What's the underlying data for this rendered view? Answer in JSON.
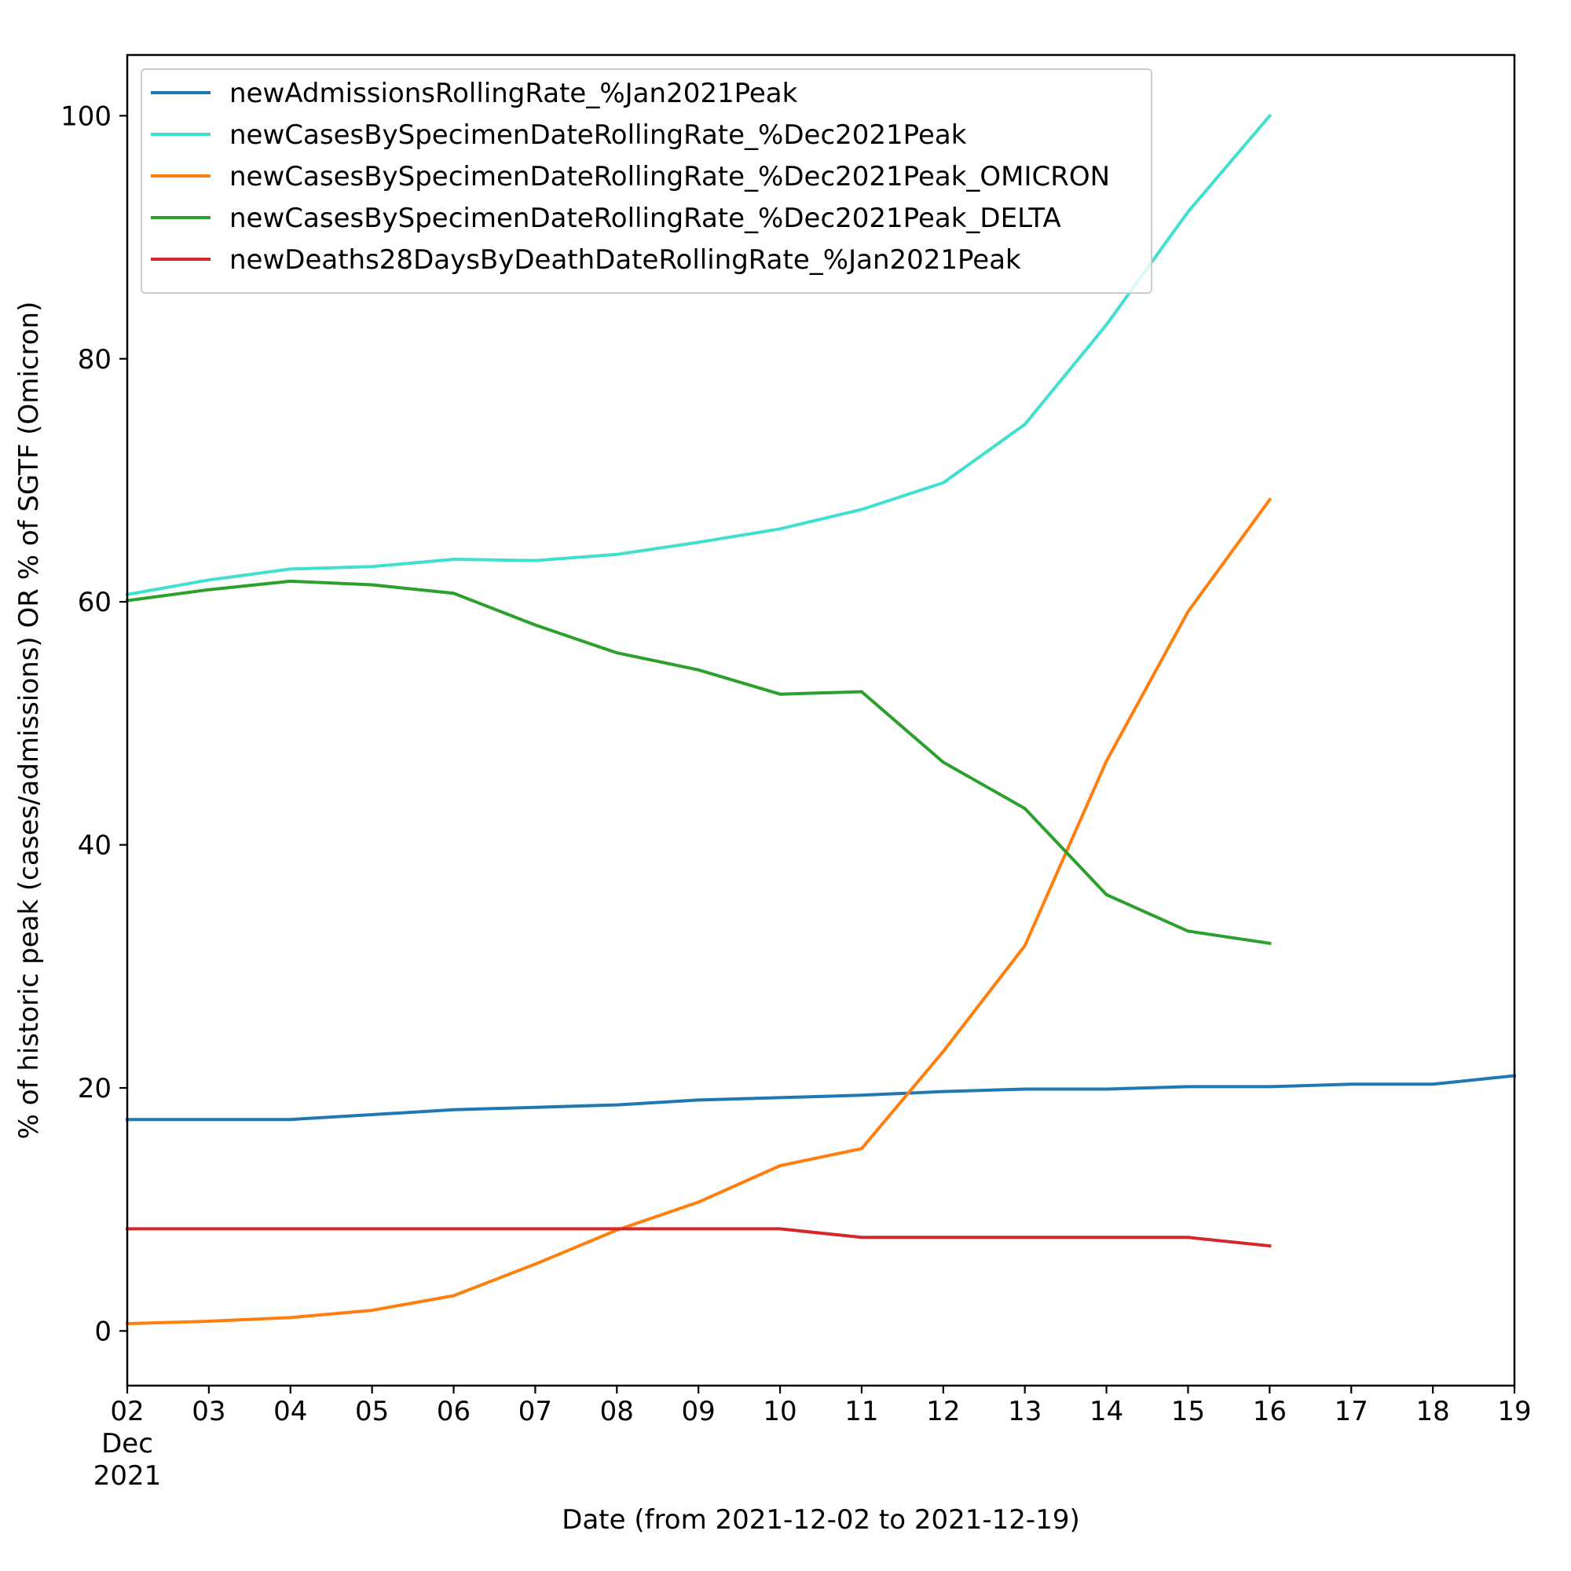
{
  "chart_data": {
    "type": "line",
    "xlabel": "Date (from 2021-12-02 to 2021-12-19)",
    "ylabel": "% of historic peak (cases/admissions) OR % of SGTF (Omicron)",
    "x": [
      "2021-12-02",
      "2021-12-03",
      "2021-12-04",
      "2021-12-05",
      "2021-12-06",
      "2021-12-07",
      "2021-12-08",
      "2021-12-09",
      "2021-12-10",
      "2021-12-11",
      "2021-12-12",
      "2021-12-13",
      "2021-12-14",
      "2021-12-15",
      "2021-12-16",
      "2021-12-17",
      "2021-12-18",
      "2021-12-19"
    ],
    "xlim": [
      "2021-12-02",
      "2021-12-19"
    ],
    "ylim": [
      -4.5,
      105
    ],
    "x_ticks": [
      {
        "lines": [
          "02",
          "Dec",
          "2021"
        ]
      },
      {
        "lines": [
          "03"
        ]
      },
      {
        "lines": [
          "04"
        ]
      },
      {
        "lines": [
          "05"
        ]
      },
      {
        "lines": [
          "06"
        ]
      },
      {
        "lines": [
          "07"
        ]
      },
      {
        "lines": [
          "08"
        ]
      },
      {
        "lines": [
          "09"
        ]
      },
      {
        "lines": [
          "10"
        ]
      },
      {
        "lines": [
          "11"
        ]
      },
      {
        "lines": [
          "12"
        ]
      },
      {
        "lines": [
          "13"
        ]
      },
      {
        "lines": [
          "14"
        ]
      },
      {
        "lines": [
          "15"
        ]
      },
      {
        "lines": [
          "16"
        ]
      },
      {
        "lines": [
          "17"
        ]
      },
      {
        "lines": [
          "18"
        ]
      },
      {
        "lines": [
          "19"
        ]
      }
    ],
    "y_ticks": [
      0,
      20,
      40,
      60,
      80,
      100
    ],
    "y_tick_labels": [
      "0",
      "20",
      "40",
      "60",
      "80",
      "100"
    ],
    "grid": false,
    "legend": "top-left",
    "series": [
      {
        "name": "newAdmissionsRollingRate_%Jan2021Peak",
        "color": "#1f77b4",
        "values": [
          17.4,
          17.4,
          17.4,
          17.8,
          18.2,
          18.4,
          18.6,
          19.0,
          19.2,
          19.4,
          19.7,
          19.9,
          19.9,
          20.1,
          20.1,
          20.3,
          20.3,
          21.0
        ]
      },
      {
        "name": "newCasesBySpecimenDateRollingRate_%Dec2021Peak",
        "color": "#40e0d0",
        "values": [
          60.6,
          61.8,
          62.7,
          62.9,
          63.5,
          63.4,
          63.9,
          64.9,
          66.0,
          67.6,
          69.8,
          74.6,
          82.8,
          92.1,
          100.0,
          null,
          null,
          null
        ]
      },
      {
        "name": "newCasesBySpecimenDateRollingRate_%Dec2021Peak_OMICRON",
        "color": "#ff7f0e",
        "values": [
          0.6,
          0.8,
          1.1,
          1.7,
          2.9,
          5.5,
          8.3,
          10.6,
          13.6,
          15.0,
          23.0,
          31.7,
          46.9,
          59.2,
          68.4,
          null,
          null,
          null
        ]
      },
      {
        "name": "newCasesBySpecimenDateRollingRate_%Dec2021Peak_DELTA",
        "color": "#2ca02c",
        "values": [
          60.1,
          61.0,
          61.7,
          61.4,
          60.7,
          58.1,
          55.8,
          54.4,
          52.4,
          52.6,
          46.8,
          43.0,
          35.9,
          32.9,
          31.9,
          null,
          null,
          null
        ]
      },
      {
        "name": "newDeaths28DaysByDeathDateRollingRate_%Jan2021Peak",
        "color": "#d62728",
        "values": [
          8.4,
          8.4,
          8.4,
          8.4,
          8.4,
          8.4,
          8.4,
          8.4,
          8.4,
          7.7,
          7.7,
          7.7,
          7.7,
          7.7,
          7.0,
          null,
          null,
          null
        ]
      }
    ]
  }
}
